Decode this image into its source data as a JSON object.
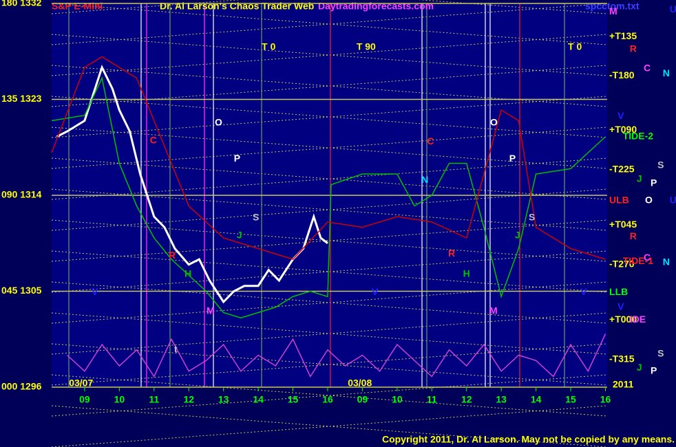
{
  "chart_data": {
    "type": "line",
    "title": "S&P E-Mini",
    "subtitle": "Dr. Al Larson's Chaos Trader Web",
    "site": "Daytradingforecasts.com",
    "file": "spcctom.txt",
    "copyright": "Copyright 2011, Dr. Al Larson. May not be copied by any means.",
    "year": "2011",
    "dates": [
      {
        "text": "03/07",
        "x": 8.55
      },
      {
        "text": "03/08",
        "x": 16.58
      }
    ],
    "xlim": [
      8.05,
      24.05
    ],
    "xticks": [
      {
        "value": 9,
        "label": "09"
      },
      10,
      11,
      12,
      13,
      14,
      15,
      16,
      {
        "value": 17,
        "label": "09"
      },
      {
        "value": 18,
        "label": "10"
      },
      {
        "value": 19,
        "label": "11"
      },
      {
        "value": 20,
        "label": "12"
      },
      {
        "value": 21,
        "label": "13"
      },
      {
        "value": 22,
        "label": "14"
      },
      {
        "value": 23,
        "label": "15"
      },
      {
        "value": 24,
        "label": "16"
      }
    ],
    "ylim": [
      1296,
      1332
    ],
    "yticks": [
      {
        "value": 1296,
        "label": "000 1296"
      },
      {
        "value": 1305,
        "label": "045 1305"
      },
      {
        "value": 1314,
        "label": "090 1314"
      },
      {
        "value": 1323,
        "label": "135 1323"
      },
      {
        "value": 1332,
        "label": "180 1332"
      }
    ],
    "grid": true,
    "series": [
      {
        "color": "#ffffff",
        "x": [
          8.2,
          8.5,
          9,
          9.5,
          9.8,
          10,
          10.3,
          10.6,
          11,
          11.3,
          11.6,
          12,
          12.3,
          12.6,
          13,
          13.3,
          13.6,
          14,
          14.3,
          14.6,
          15,
          15.3,
          15.6,
          15.8,
          16
        ],
        "values": [
          1319.5,
          1320,
          1321,
          1326,
          1324,
          1322,
          1320,
          1316,
          1312,
          1311,
          1309,
          1307.5,
          1308,
          1306,
          1304,
          1305,
          1305.5,
          1305.5,
          1307,
          1306,
          1308,
          1309,
          1312,
          1310,
          1309.5
        ]
      },
      {
        "color": "#00c000",
        "x": [
          8.05,
          9,
          9.5,
          10,
          10.5,
          11,
          11.5,
          12,
          12.5,
          13,
          13.5,
          14,
          14.5,
          15,
          15.5,
          16,
          16.1,
          17,
          18,
          18.5,
          19,
          19.5,
          20,
          20.5,
          21,
          21.5,
          22,
          23,
          24
        ],
        "values": [
          1321,
          1321.5,
          1325,
          1317,
          1313,
          1310,
          1308,
          1306.5,
          1305,
          1303,
          1302.5,
          1303,
          1303.5,
          1304.5,
          1305,
          1304.5,
          1315,
          1316,
          1316,
          1313,
          1314,
          1317,
          1317,
          1311,
          1304.5,
          1309,
          1316,
          1316.5,
          1319.5
        ]
      },
      {
        "color": "#d00000",
        "x": [
          8.05,
          9,
          9.5,
          10.5,
          11,
          12,
          13,
          14,
          15,
          16,
          17,
          18,
          19,
          20,
          21,
          21.5,
          22,
          23,
          24
        ],
        "values": [
          1318,
          1326,
          1327,
          1325,
          1321,
          1313,
          1310,
          1309,
          1308,
          1311.5,
          1311,
          1312,
          1311.5,
          1310,
          1322,
          1321,
          1311,
          1309,
          1308
        ]
      },
      {
        "color": "#d040d0",
        "x": [
          8.5,
          9,
          9.5,
          10,
          10.5,
          11,
          11.5,
          12,
          12.5,
          13,
          13.5,
          14,
          14.5,
          15,
          15.5,
          16,
          16.5,
          17,
          17.5,
          18,
          18.5,
          19,
          19.5,
          20,
          20.5,
          21,
          21.5,
          22,
          22.5,
          23,
          23.5,
          24
        ],
        "values": [
          1299,
          1297.5,
          1300,
          1298,
          1299.5,
          1297,
          1300.5,
          1297.5,
          1298.5,
          1300,
          1297.5,
          1299,
          1298,
          1300.5,
          1297,
          1299.5,
          1298,
          1299,
          1297.5,
          1300,
          1298.5,
          1297,
          1299.5,
          1298,
          1300,
          1297.5,
          1299,
          1298.5,
          1297,
          1300,
          1297.5,
          1301
        ]
      }
    ],
    "annotations": [
      {
        "text": "T 0",
        "x": 14.1,
        "y": 1327.9,
        "color": "#ffff00"
      },
      {
        "text": "T 90",
        "x": 16.83,
        "y": 1327.9,
        "color": "#ffff00"
      },
      {
        "text": "T 0",
        "x": 22.92,
        "y": 1327.9,
        "color": "#ffff00"
      },
      {
        "text": "+T135",
        "x": 24.11,
        "y": 1328.9,
        "color": "#ffff00"
      },
      {
        "text": "-T180",
        "x": 24.11,
        "y": 1325.2,
        "color": "#ffff00"
      },
      {
        "text": "+T090",
        "x": 24.11,
        "y": 1320.1,
        "color": "#ffff00"
      },
      {
        "text": "-T225",
        "x": 24.11,
        "y": 1316.4,
        "color": "#ffff00"
      },
      {
        "text": "+T045",
        "x": 24.11,
        "y": 1311.2,
        "color": "#ffff00"
      },
      {
        "text": "-T270",
        "x": 24.11,
        "y": 1307.5,
        "color": "#ffff00"
      },
      {
        "text": "+T000",
        "x": 24.11,
        "y": 1302.3,
        "color": "#ffff00"
      },
      {
        "text": "-T315",
        "x": 24.11,
        "y": 1298.6,
        "color": "#ffff00"
      },
      {
        "text": "LLB",
        "x": 24.11,
        "y": 1304.9,
        "color": "#00ff00"
      },
      {
        "text": "ULB",
        "x": 24.11,
        "y": 1313.5,
        "color": "#ff2020"
      },
      {
        "text": "TIDE-2",
        "x": 24.5,
        "y": 1319.5,
        "color": "#00ff00"
      },
      {
        "text": "TIDE-1",
        "x": 24.5,
        "y": 1307.8,
        "color": "#ff2020"
      },
      {
        "text": "IDE",
        "x": 24.7,
        "y": 1302.3,
        "color": "#ff40ff"
      },
      {
        "text": "M",
        "x": 24.11,
        "y": 1331.2,
        "color": "#ff40ff"
      },
      {
        "text": "U",
        "x": 25.85,
        "y": 1331.4,
        "color": "#2020ff"
      },
      {
        "text": "R",
        "x": 24.7,
        "y": 1327.7,
        "color": "#ff2020"
      },
      {
        "text": "C",
        "x": 25.1,
        "y": 1325.9,
        "color": "#ff40ff"
      },
      {
        "text": "N",
        "x": 25.65,
        "y": 1325.4,
        "color": "#00e0ff"
      },
      {
        "text": "V",
        "x": 24.35,
        "y": 1321.4,
        "color": "#2020ff"
      },
      {
        "text": "S",
        "x": 25.5,
        "y": 1316.8,
        "color": "#c0c0c0"
      },
      {
        "text": "J",
        "x": 24.9,
        "y": 1315.5,
        "color": "#00c000"
      },
      {
        "text": "P",
        "x": 25.3,
        "y": 1315.1,
        "color": "#ffffff"
      },
      {
        "text": "O",
        "x": 25.14,
        "y": 1313.5,
        "color": "#ffffff"
      },
      {
        "text": "U",
        "x": 25.85,
        "y": 1313.5,
        "color": "#2020ff"
      },
      {
        "text": "R",
        "x": 24.7,
        "y": 1310.1,
        "color": "#ff2020"
      },
      {
        "text": "C",
        "x": 25.1,
        "y": 1308.1,
        "color": "#ff40ff"
      },
      {
        "text": "N",
        "x": 25.65,
        "y": 1307.7,
        "color": "#00e0ff"
      },
      {
        "text": "V",
        "x": 24.35,
        "y": 1303.5,
        "color": "#2020ff"
      },
      {
        "text": "S",
        "x": 25.5,
        "y": 1299.1,
        "color": "#c0c0c0"
      },
      {
        "text": "J",
        "x": 24.9,
        "y": 1297.8,
        "color": "#00c000"
      },
      {
        "text": "P",
        "x": 25.3,
        "y": 1297.5,
        "color": "#ffffff"
      },
      {
        "text": "O",
        "x": 12.75,
        "y": 1320.8,
        "color": "#ffffff"
      },
      {
        "text": "P",
        "x": 13.3,
        "y": 1317.4,
        "color": "#ffffff"
      },
      {
        "text": "C",
        "x": 10.88,
        "y": 1319.1,
        "color": "#ff2020"
      },
      {
        "text": "S",
        "x": 13.84,
        "y": 1311.9,
        "color": "#c0c0c0"
      },
      {
        "text": "J",
        "x": 13.38,
        "y": 1310.2,
        "color": "#00c000"
      },
      {
        "text": "H",
        "x": 11.88,
        "y": 1306.6,
        "color": "#00c000"
      },
      {
        "text": "M",
        "x": 12.51,
        "y": 1303.1,
        "color": "#ff40ff"
      },
      {
        "text": "R",
        "x": 11.42,
        "y": 1308.3,
        "color": "#ff2020"
      },
      {
        "text": "V",
        "x": 9.2,
        "y": 1304.9,
        "color": "#2020ff"
      },
      {
        "text": "t",
        "x": 11.58,
        "y": 1299.5,
        "color": "#c0c0c0"
      },
      {
        "text": "N",
        "x": 18.7,
        "y": 1315.4,
        "color": "#00e0ff"
      },
      {
        "text": "O",
        "x": 20.68,
        "y": 1320.8,
        "color": "#ffffff"
      },
      {
        "text": "P",
        "x": 21.23,
        "y": 1317.4,
        "color": "#ffffff"
      },
      {
        "text": "C",
        "x": 18.86,
        "y": 1319,
        "color": "#ff2020"
      },
      {
        "text": "S",
        "x": 21.79,
        "y": 1311.9,
        "color": "#c0c0c0"
      },
      {
        "text": "J",
        "x": 21.39,
        "y": 1310.2,
        "color": "#00c000"
      },
      {
        "text": "H",
        "x": 19.9,
        "y": 1306.6,
        "color": "#00c000"
      },
      {
        "text": "M",
        "x": 20.66,
        "y": 1303.1,
        "color": "#ff40ff"
      },
      {
        "text": "R",
        "x": 19.47,
        "y": 1308.5,
        "color": "#ff2020"
      },
      {
        "text": "V",
        "x": 17.27,
        "y": 1304.9,
        "color": "#2020ff"
      },
      {
        "text": "V",
        "x": 23.28,
        "y": 1304.9,
        "color": "#2020ff"
      }
    ]
  }
}
